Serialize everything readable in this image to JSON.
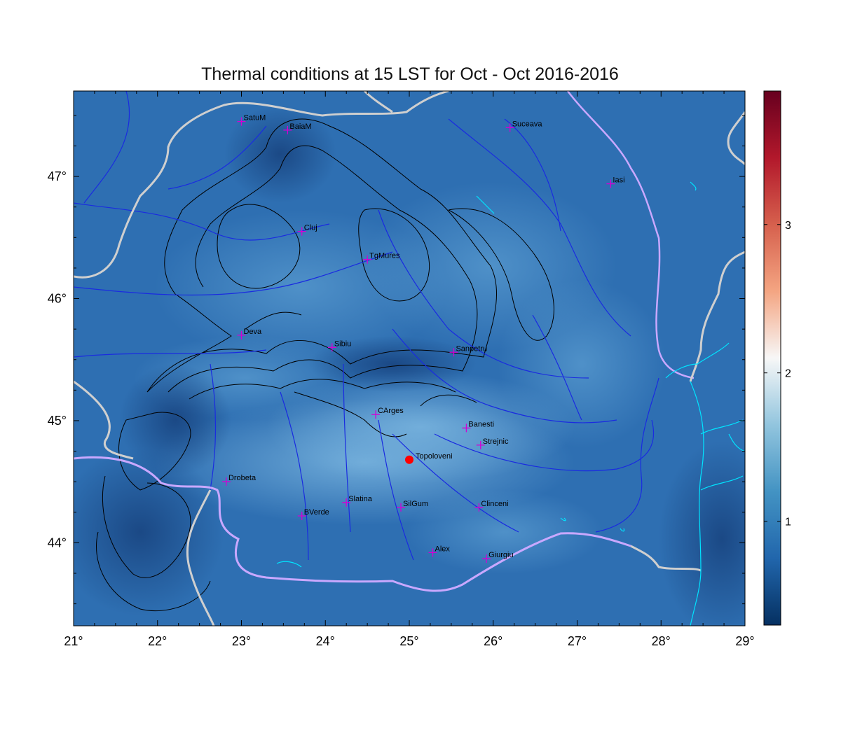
{
  "title": "Thermal conditions at 15 LST for Oct - Oct  2016-2016",
  "map": {
    "lon_range": [
      21,
      29
    ],
    "lat_range": [
      43.32,
      47.7
    ],
    "lon_ticks": [
      "21°",
      "22°",
      "23°",
      "24°",
      "25°",
      "26°",
      "27°",
      "28°",
      "29°"
    ],
    "lat_ticks": [
      {
        "lat": 47,
        "label": "47°"
      },
      {
        "lat": 46,
        "label": "46°"
      },
      {
        "lat": 45,
        "label": "45°"
      },
      {
        "lat": 44,
        "label": "44°"
      }
    ],
    "stations": [
      {
        "name": "SatuM",
        "lon": 23.0,
        "lat": 47.45
      },
      {
        "name": "BaiaM",
        "lon": 23.55,
        "lat": 47.38
      },
      {
        "name": "Suceava",
        "lon": 26.2,
        "lat": 47.4
      },
      {
        "name": "Iasi",
        "lon": 27.4,
        "lat": 46.94
      },
      {
        "name": "Cluj",
        "lon": 23.72,
        "lat": 46.55
      },
      {
        "name": "TgMures",
        "lon": 24.5,
        "lat": 46.32
      },
      {
        "name": "Deva",
        "lon": 23.0,
        "lat": 45.7
      },
      {
        "name": "Sibiu",
        "lon": 24.08,
        "lat": 45.6
      },
      {
        "name": "Sanpetru",
        "lon": 25.53,
        "lat": 45.56
      },
      {
        "name": "CArges",
        "lon": 24.6,
        "lat": 45.05
      },
      {
        "name": "Banesti",
        "lon": 25.68,
        "lat": 44.94
      },
      {
        "name": "Strejnic",
        "lon": 25.85,
        "lat": 44.8
      },
      {
        "name": "Drobeta",
        "lon": 22.82,
        "lat": 44.5
      },
      {
        "name": "Slatina",
        "lon": 24.25,
        "lat": 44.33
      },
      {
        "name": "SilGum",
        "lon": 24.9,
        "lat": 44.29
      },
      {
        "name": "Clinceni",
        "lon": 25.83,
        "lat": 44.29
      },
      {
        "name": "BVerde",
        "lon": 23.72,
        "lat": 44.22
      },
      {
        "name": "Alex",
        "lon": 25.28,
        "lat": 43.92
      },
      {
        "name": "Giurgiu",
        "lon": 25.92,
        "lat": 43.87
      }
    ],
    "highlight_station": {
      "name": "Topoloveni",
      "lon": 25.0,
      "lat": 44.68
    },
    "colors": {
      "field_base": "#2b6fb3",
      "field_light": "#6aa9d6",
      "field_dark": "#1f4f8f",
      "rivers": "#1a2be0",
      "borders": "#c8c8c8",
      "contours": "#000000",
      "coastline": "#00e5ff",
      "danube_border": "#c9a8ff",
      "station_marker": "#d400d4",
      "highlight_marker": "#ff0000"
    }
  },
  "colorbar": {
    "ticks": [
      {
        "value": 1,
        "label": "1"
      },
      {
        "value": 2,
        "label": "2"
      },
      {
        "value": 3,
        "label": "3"
      }
    ],
    "min": 0.3,
    "max": 3.9,
    "colors": [
      "#053061",
      "#2166ac",
      "#4393c3",
      "#92c5de",
      "#f7f7f7",
      "#f4a582",
      "#d6604d",
      "#b2182b",
      "#67001f"
    ]
  }
}
